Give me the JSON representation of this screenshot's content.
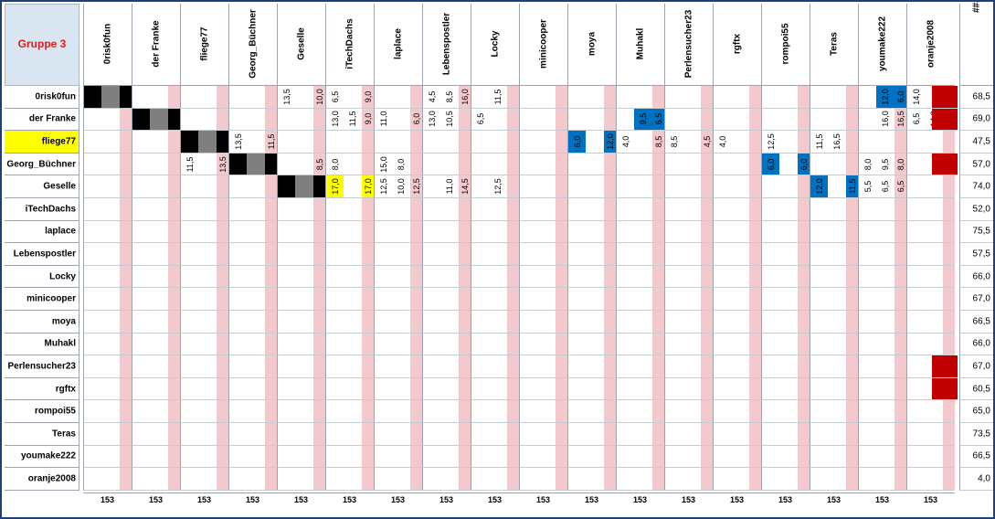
{
  "group_label": "Gruppe 3",
  "hash_label": "#####",
  "players": [
    "0risk0fun",
    "der Franke",
    "fliege77",
    "Georg_Büchner",
    "Geselle",
    "iTechDachs",
    "laplace",
    "Lebenspostler",
    "Locky",
    "minicooper",
    "moya",
    "Muhakl",
    "Perlensucher23",
    "rgftx",
    "rompoi55",
    "Teras",
    "youmake222",
    "oranje2008"
  ],
  "highlighted_row": 2,
  "colors": {
    "black": "#000000",
    "grey": "#7f7f7f",
    "blue": "#0070c0",
    "yellow": "#ffff00",
    "red": "#c00000",
    "pink": "#f3c9cd"
  },
  "rows": [
    {
      "cells": [
        "",
        "",
        "",
        "",
        "",
        "",
        "",
        "",
        "",
        "",
        "",
        "",
        "",
        "",
        "",
        "",
        "",
        "",
        "",
        "",
        "",
        "",
        "",
        "",
        "",
        "",
        "",
        "",
        "",
        "",
        "",
        "",
        "",
        "",
        "",
        "",
        "",
        "",
        "",
        "",
        "",
        "",
        "",
        "",
        "",
        "",
        "",
        "",
        "",
        "",
        "",
        "",
        "",
        "",
        "",
        "",
        "",
        "",
        "",
        "",
        "",
        "",
        "",
        "",
        "",
        "",
        "",
        "",
        "",
        "",
        "",
        "",
        ""
      ],
      "score": "68,5",
      "red_flag": true
    },
    {
      "cells": [],
      "score": "69,0",
      "red_flag": true
    },
    {
      "cells": [],
      "score": "47,5",
      "red_flag": false
    },
    {
      "cells": [],
      "score": "57,0",
      "red_flag": true
    },
    {
      "cells": [],
      "score": "74,0",
      "red_flag": false
    },
    {
      "cells": [],
      "score": "52,0",
      "red_flag": false
    },
    {
      "cells": [],
      "score": "75,5",
      "red_flag": false
    },
    {
      "cells": [],
      "score": "57,5",
      "red_flag": false
    },
    {
      "cells": [],
      "score": "66,0",
      "red_flag": false
    },
    {
      "cells": [],
      "score": "67,0",
      "red_flag": false
    },
    {
      "cells": [],
      "score": "66,5",
      "red_flag": false
    },
    {
      "cells": [],
      "score": "66,0",
      "red_flag": false
    },
    {
      "cells": [],
      "score": "67,0",
      "red_flag": true
    },
    {
      "cells": [],
      "score": "60,5",
      "red_flag": true
    },
    {
      "cells": [],
      "score": "65,0",
      "red_flag": false
    },
    {
      "cells": [],
      "score": "73,5",
      "red_flag": false
    },
    {
      "cells": [],
      "score": "66,5",
      "red_flag": false
    },
    {
      "cells": [],
      "score": "4,0",
      "red_flag": false
    }
  ],
  "grid": [
    [
      "",
      "",
      "",
      "",
      "",
      "",
      "",
      "",
      "",
      "",
      "",
      "",
      "",
      "",
      "",
      "",
      "",
      "",
      "",
      "",
      "",
      "",
      "",
      "",
      "",
      "",
      "",
      "",
      "",
      "",
      "",
      "",
      "",
      "",
      "",
      "",
      "",
      "",
      "",
      "",
      "",
      "",
      "",
      "",
      "",
      "",
      "",
      "",
      "",
      "",
      "",
      "",
      "",
      "",
      "",
      "",
      "",
      "",
      "",
      "",
      "",
      "",
      "",
      "",
      "",
      "",
      "",
      "",
      "",
      "",
      "",
      ""
    ]
  ],
  "marks": [
    {
      "r": 0,
      "c": 0,
      "t": "k"
    },
    {
      "r": 0,
      "c": 1,
      "t": "g"
    },
    {
      "r": 0,
      "c": 2,
      "t": "k"
    },
    {
      "r": 0,
      "c": 12,
      "v": "13,5"
    },
    {
      "r": 0,
      "c": 14,
      "v": "10,0"
    },
    {
      "r": 0,
      "c": 15,
      "v": "6,5"
    },
    {
      "r": 0,
      "c": 17,
      "v": "9,0"
    },
    {
      "r": 0,
      "c": 21,
      "v": "4,5"
    },
    {
      "r": 0,
      "c": 22,
      "v": "8,5"
    },
    {
      "r": 0,
      "c": 23,
      "v": "16,0"
    },
    {
      "r": 0,
      "c": 25,
      "v": "11,5"
    },
    {
      "r": 0,
      "c": 49,
      "v": "12,0",
      "t": "b"
    },
    {
      "r": 0,
      "c": 50,
      "v": "6,0",
      "t": "b"
    },
    {
      "r": 0,
      "c": 51,
      "v": "14,0"
    },
    {
      "r": 1,
      "c": 3,
      "t": "k"
    },
    {
      "r": 1,
      "c": 4,
      "t": "g"
    },
    {
      "r": 1,
      "c": 5,
      "t": "k"
    },
    {
      "r": 1,
      "c": 15,
      "v": "13,0"
    },
    {
      "r": 1,
      "c": 16,
      "v": "11,5"
    },
    {
      "r": 1,
      "c": 17,
      "v": "9,0"
    },
    {
      "r": 1,
      "c": 18,
      "v": "11,0"
    },
    {
      "r": 1,
      "c": 20,
      "v": "6,0"
    },
    {
      "r": 1,
      "c": 21,
      "v": "13,0"
    },
    {
      "r": 1,
      "c": 22,
      "v": "10,5"
    },
    {
      "r": 1,
      "c": 24,
      "v": "6,5"
    },
    {
      "r": 1,
      "c": 34,
      "v": "9,5",
      "t": "b"
    },
    {
      "r": 1,
      "c": 35,
      "v": "6,5",
      "t": "b"
    },
    {
      "r": 1,
      "c": 49,
      "v": "16,0"
    },
    {
      "r": 1,
      "c": 50,
      "v": "16,5"
    },
    {
      "r": 1,
      "c": 51,
      "v": "6,5"
    },
    {
      "r": 1,
      "c": 52,
      "v": "14,0"
    },
    {
      "r": 2,
      "c": 6,
      "t": "k"
    },
    {
      "r": 2,
      "c": 7,
      "t": "g"
    },
    {
      "r": 2,
      "c": 8,
      "t": "k"
    },
    {
      "r": 2,
      "c": 9,
      "v": "13,5"
    },
    {
      "r": 2,
      "c": 11,
      "v": "11,5"
    },
    {
      "r": 2,
      "c": 30,
      "v": "6,0",
      "t": "b"
    },
    {
      "r": 2,
      "c": 32,
      "v": "12,0",
      "t": "b"
    },
    {
      "r": 2,
      "c": 33,
      "v": "4,0"
    },
    {
      "r": 2,
      "c": 35,
      "v": "8,5"
    },
    {
      "r": 2,
      "c": 36,
      "v": "8,5"
    },
    {
      "r": 2,
      "c": 38,
      "v": "4,5"
    },
    {
      "r": 2,
      "c": 39,
      "v": "4,0"
    },
    {
      "r": 2,
      "c": 42,
      "v": "12,5"
    },
    {
      "r": 2,
      "c": 45,
      "v": "11,5"
    },
    {
      "r": 2,
      "c": 46,
      "v": "16,5"
    },
    {
      "r": 3,
      "c": 6,
      "v": "11,5"
    },
    {
      "r": 3,
      "c": 8,
      "v": "13,5"
    },
    {
      "r": 3,
      "c": 9,
      "t": "k"
    },
    {
      "r": 3,
      "c": 10,
      "t": "g"
    },
    {
      "r": 3,
      "c": 11,
      "t": "k"
    },
    {
      "r": 3,
      "c": 14,
      "v": "8,5"
    },
    {
      "r": 3,
      "c": 15,
      "v": "8,0"
    },
    {
      "r": 3,
      "c": 18,
      "v": "15,0"
    },
    {
      "r": 3,
      "c": 19,
      "v": "8,0"
    },
    {
      "r": 3,
      "c": 42,
      "v": "6,0",
      "t": "b"
    },
    {
      "r": 3,
      "c": 44,
      "v": "6,0",
      "t": "b"
    },
    {
      "r": 3,
      "c": 48,
      "v": "8,0"
    },
    {
      "r": 3,
      "c": 49,
      "v": "9,5"
    },
    {
      "r": 3,
      "c": 50,
      "v": "8,0"
    },
    {
      "r": 4,
      "c": 12,
      "t": "k"
    },
    {
      "r": 4,
      "c": 13,
      "t": "g"
    },
    {
      "r": 4,
      "c": 14,
      "t": "k"
    },
    {
      "r": 4,
      "c": 15,
      "v": "17,0",
      "t": "y"
    },
    {
      "r": 4,
      "c": 17,
      "v": "17,0",
      "t": "y"
    },
    {
      "r": 4,
      "c": 18,
      "v": "12,5"
    },
    {
      "r": 4,
      "c": 19,
      "v": "10,0"
    },
    {
      "r": 4,
      "c": 20,
      "v": "12,5"
    },
    {
      "r": 4,
      "c": 22,
      "v": "11,0"
    },
    {
      "r": 4,
      "c": 23,
      "v": "14,5"
    },
    {
      "r": 4,
      "c": 25,
      "v": "12,5"
    },
    {
      "r": 4,
      "c": 45,
      "v": "12,0",
      "t": "b"
    },
    {
      "r": 4,
      "c": 47,
      "v": "11,5",
      "t": "b"
    },
    {
      "r": 4,
      "c": 48,
      "v": "5,5"
    },
    {
      "r": 4,
      "c": 49,
      "v": "6,5"
    },
    {
      "r": 4,
      "c": 50,
      "v": "6,5"
    }
  ]
}
